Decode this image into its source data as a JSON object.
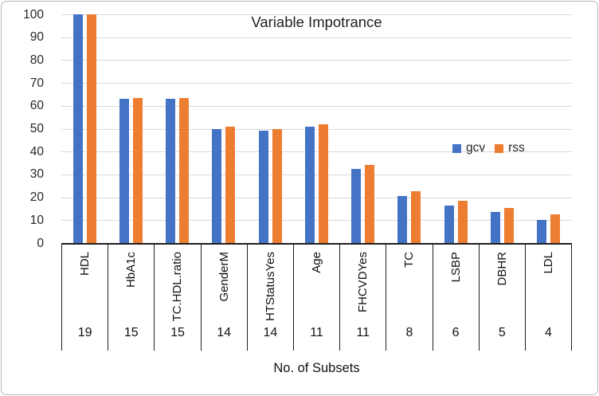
{
  "window": {
    "border_color": "#b5b5b5",
    "background": "#ffffff"
  },
  "chart_data": {
    "type": "bar",
    "title": "Variable Impotrance",
    "xlabel": "No. of Subsets",
    "ylabel": "",
    "categories": [
      "HDL",
      "HbA1c",
      "TC.HDL.ratio",
      "GenderM",
      "HTStatusYes",
      "Age",
      "FHCVDYes",
      "TC",
      "LSBP",
      "DBHR",
      "LDL"
    ],
    "subset_counts": [
      19,
      15,
      15,
      14,
      14,
      11,
      11,
      8,
      6,
      5,
      4
    ],
    "series": [
      {
        "name": "gcv",
        "color": "#4472C4",
        "values": [
          100,
          63,
          63,
          50,
          49,
          51,
          32.5,
          20.5,
          16.5,
          13.5,
          10
        ]
      },
      {
        "name": "rss",
        "color": "#ED7D31",
        "values": [
          100,
          63.5,
          63.5,
          51,
          50,
          52,
          34,
          22.5,
          18.5,
          15.5,
          12.5
        ]
      }
    ],
    "ylim": [
      0,
      100
    ],
    "yticks": [
      0,
      10,
      20,
      30,
      40,
      50,
      60,
      70,
      80,
      90,
      100
    ],
    "grid": true,
    "gridline_color": "#D9D9D9",
    "axis_color": "#1f1f1f",
    "legend_position": "middle-right"
  }
}
